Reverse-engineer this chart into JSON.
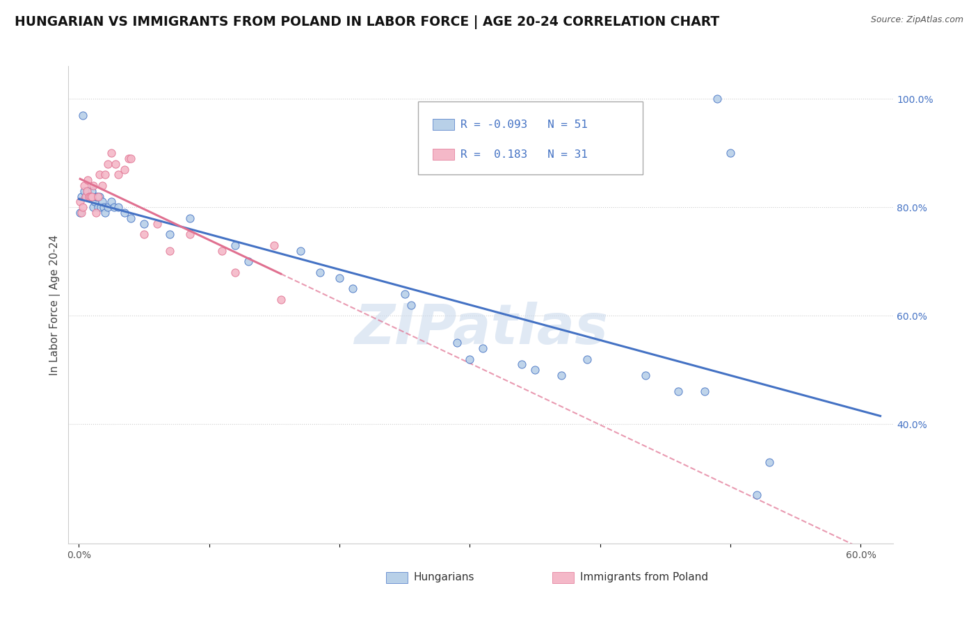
{
  "title": "HUNGARIAN VS IMMIGRANTS FROM POLAND IN LABOR FORCE | AGE 20-24 CORRELATION CHART",
  "source": "Source: ZipAtlas.com",
  "ylabel": "In Labor Force | Age 20-24",
  "xlim": [
    -0.008,
    0.625
  ],
  "ylim": [
    0.18,
    1.06
  ],
  "xticks": [
    0.0,
    0.1,
    0.2,
    0.3,
    0.4,
    0.5,
    0.6
  ],
  "xtick_labels": [
    "0.0%",
    "",
    "",
    "",
    "",
    "",
    "60.0%"
  ],
  "yticks_right": [
    0.4,
    0.6,
    0.8,
    1.0
  ],
  "legend_R_blue": "-0.093",
  "legend_N_blue": "51",
  "legend_R_pink": "0.183",
  "legend_N_pink": "31",
  "blue_fill": "#b8d0e8",
  "blue_edge": "#4472c4",
  "pink_fill": "#f4b8c8",
  "pink_edge": "#e07090",
  "blue_line_color": "#4472c4",
  "pink_line_color": "#e07090",
  "blue_scatter": [
    [
      0.001,
      0.79
    ],
    [
      0.002,
      0.82
    ],
    [
      0.003,
      0.97
    ],
    [
      0.004,
      0.83
    ],
    [
      0.005,
      0.82
    ],
    [
      0.006,
      0.82
    ],
    [
      0.007,
      0.83
    ],
    [
      0.008,
      0.82
    ],
    [
      0.009,
      0.82
    ],
    [
      0.01,
      0.83
    ],
    [
      0.011,
      0.8
    ],
    [
      0.012,
      0.81
    ],
    [
      0.013,
      0.82
    ],
    [
      0.014,
      0.82
    ],
    [
      0.015,
      0.8
    ],
    [
      0.016,
      0.82
    ],
    [
      0.017,
      0.8
    ],
    [
      0.018,
      0.81
    ],
    [
      0.019,
      0.8
    ],
    [
      0.02,
      0.79
    ],
    [
      0.022,
      0.8
    ],
    [
      0.025,
      0.81
    ],
    [
      0.027,
      0.8
    ],
    [
      0.03,
      0.8
    ],
    [
      0.035,
      0.79
    ],
    [
      0.04,
      0.78
    ],
    [
      0.05,
      0.77
    ],
    [
      0.07,
      0.75
    ],
    [
      0.085,
      0.78
    ],
    [
      0.12,
      0.73
    ],
    [
      0.13,
      0.7
    ],
    [
      0.17,
      0.72
    ],
    [
      0.185,
      0.68
    ],
    [
      0.2,
      0.67
    ],
    [
      0.21,
      0.65
    ],
    [
      0.25,
      0.64
    ],
    [
      0.255,
      0.62
    ],
    [
      0.29,
      0.55
    ],
    [
      0.3,
      0.52
    ],
    [
      0.31,
      0.54
    ],
    [
      0.34,
      0.51
    ],
    [
      0.35,
      0.5
    ],
    [
      0.37,
      0.49
    ],
    [
      0.39,
      0.52
    ],
    [
      0.435,
      0.49
    ],
    [
      0.46,
      0.46
    ],
    [
      0.48,
      0.46
    ],
    [
      0.49,
      1.0
    ],
    [
      0.5,
      0.9
    ],
    [
      0.52,
      0.27
    ],
    [
      0.53,
      0.33
    ]
  ],
  "pink_scatter": [
    [
      0.001,
      0.81
    ],
    [
      0.002,
      0.79
    ],
    [
      0.003,
      0.8
    ],
    [
      0.004,
      0.84
    ],
    [
      0.005,
      0.82
    ],
    [
      0.006,
      0.83
    ],
    [
      0.007,
      0.85
    ],
    [
      0.008,
      0.82
    ],
    [
      0.009,
      0.82
    ],
    [
      0.01,
      0.82
    ],
    [
      0.011,
      0.84
    ],
    [
      0.013,
      0.79
    ],
    [
      0.015,
      0.82
    ],
    [
      0.016,
      0.86
    ],
    [
      0.018,
      0.84
    ],
    [
      0.02,
      0.86
    ],
    [
      0.022,
      0.88
    ],
    [
      0.025,
      0.9
    ],
    [
      0.028,
      0.88
    ],
    [
      0.03,
      0.86
    ],
    [
      0.035,
      0.87
    ],
    [
      0.038,
      0.89
    ],
    [
      0.04,
      0.89
    ],
    [
      0.05,
      0.75
    ],
    [
      0.06,
      0.77
    ],
    [
      0.07,
      0.72
    ],
    [
      0.085,
      0.75
    ],
    [
      0.11,
      0.72
    ],
    [
      0.12,
      0.68
    ],
    [
      0.15,
      0.73
    ],
    [
      0.155,
      0.63
    ]
  ],
  "watermark_text": "ZIPatlas",
  "title_fontsize": 13.5,
  "label_fontsize": 11,
  "tick_fontsize": 10
}
